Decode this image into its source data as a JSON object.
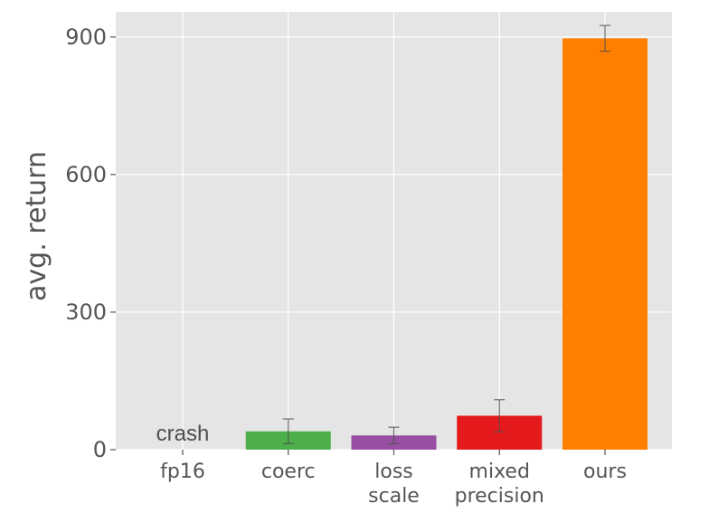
{
  "chart_data": {
    "type": "bar",
    "categories": [
      [
        "fp16"
      ],
      [
        "coerc"
      ],
      [
        "loss",
        "scale"
      ],
      [
        "mixed",
        "precision"
      ],
      [
        "ours"
      ]
    ],
    "values": [
      0,
      40,
      31,
      74,
      897
    ],
    "errors": [
      0,
      27,
      18,
      35,
      28
    ],
    "colors": [
      "#e5e5e5",
      "#4daf4a",
      "#984ea3",
      "#e41a1c",
      "#ff7f00"
    ],
    "annotations": [
      {
        "category_index": 0,
        "text": "crash"
      }
    ],
    "title": "",
    "xlabel": "",
    "ylabel": "avg. return",
    "ylim": [
      0,
      955
    ],
    "yticks": [
      0,
      300,
      600,
      900
    ],
    "grid": true,
    "background": "#e5e5e5"
  }
}
